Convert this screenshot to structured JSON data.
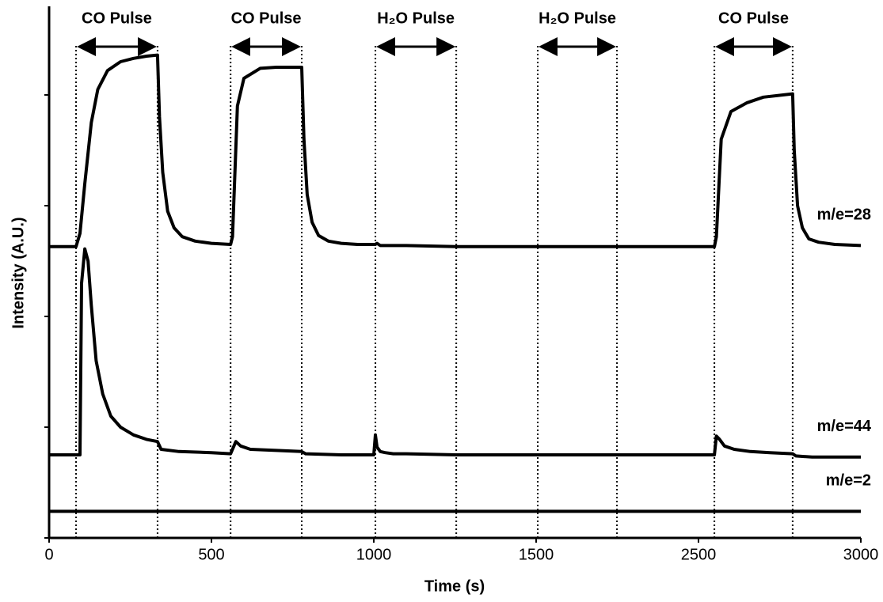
{
  "chart_data": {
    "type": "line",
    "xlabel": "Time (s)",
    "ylabel": "Intensity (A.U.)",
    "xlim": [
      0,
      3000
    ],
    "xticks": [
      0,
      500,
      1000,
      1500,
      2500,
      3000
    ],
    "ylim": [
      0,
      4.8
    ],
    "yticks": [
      0,
      1,
      2,
      3,
      4
    ],
    "series": [
      {
        "name": "m/e=28",
        "color": "#000000",
        "x": [
          0,
          83,
          95,
          110,
          130,
          150,
          180,
          220,
          260,
          300,
          334,
          340,
          350,
          365,
          385,
          410,
          450,
          500,
          559,
          565,
          580,
          600,
          650,
          700,
          778,
          785,
          795,
          810,
          830,
          860,
          900,
          950,
          1005,
          1010,
          1020,
          1100,
          1254,
          1500,
          1998,
          2400,
          2549,
          2555,
          2570,
          2600,
          2650,
          2700,
          2790,
          2795,
          2805,
          2820,
          2840,
          2870,
          2920,
          3000
        ],
        "values": [
          2.63,
          2.63,
          2.75,
          3.2,
          3.75,
          4.05,
          4.22,
          4.3,
          4.33,
          4.35,
          4.36,
          3.8,
          3.3,
          2.95,
          2.8,
          2.72,
          2.68,
          2.66,
          2.65,
          2.72,
          3.9,
          4.15,
          4.24,
          4.25,
          4.25,
          3.6,
          3.1,
          2.85,
          2.73,
          2.68,
          2.66,
          2.65,
          2.65,
          2.66,
          2.64,
          2.64,
          2.63,
          2.63,
          2.63,
          2.63,
          2.63,
          2.72,
          3.6,
          3.85,
          3.93,
          3.98,
          4.01,
          3.5,
          3.0,
          2.8,
          2.7,
          2.67,
          2.65,
          2.64
        ]
      },
      {
        "name": "m/e=44",
        "color": "#000000",
        "x": [
          0,
          95,
          100,
          110,
          120,
          130,
          145,
          165,
          190,
          220,
          260,
          300,
          334,
          345,
          400,
          500,
          559,
          565,
          575,
          590,
          620,
          700,
          778,
          790,
          900,
          1000,
          1005,
          1010,
          1020,
          1035,
          1060,
          1100,
          1254,
          1500,
          2000,
          2400,
          2549,
          2555,
          2565,
          2580,
          2610,
          2660,
          2720,
          2790,
          2800,
          2850,
          3000
        ],
        "values": [
          0.75,
          0.75,
          2.3,
          2.61,
          2.5,
          2.1,
          1.6,
          1.3,
          1.1,
          1.0,
          0.93,
          0.89,
          0.87,
          0.8,
          0.78,
          0.77,
          0.76,
          0.8,
          0.87,
          0.83,
          0.8,
          0.79,
          0.78,
          0.76,
          0.75,
          0.75,
          0.93,
          0.82,
          0.78,
          0.77,
          0.76,
          0.76,
          0.75,
          0.75,
          0.75,
          0.75,
          0.75,
          0.92,
          0.89,
          0.83,
          0.8,
          0.78,
          0.77,
          0.76,
          0.74,
          0.73,
          0.73
        ]
      },
      {
        "name": "m/e=2",
        "color": "#000000",
        "x": [
          0,
          3000
        ],
        "values": [
          0.24,
          0.24
        ]
      }
    ],
    "pulses": [
      {
        "label": "CO Pulse",
        "start": 83,
        "end": 334
      },
      {
        "label": "CO Pulse",
        "start": 559,
        "end": 778
      },
      {
        "label": "H₂O Pulse",
        "start": 1005,
        "end": 1254
      },
      {
        "label": "H₂O Pulse",
        "start": 1510,
        "end": 1998
      },
      {
        "label": "CO Pulse",
        "start": 2549,
        "end": 2790
      }
    ]
  }
}
